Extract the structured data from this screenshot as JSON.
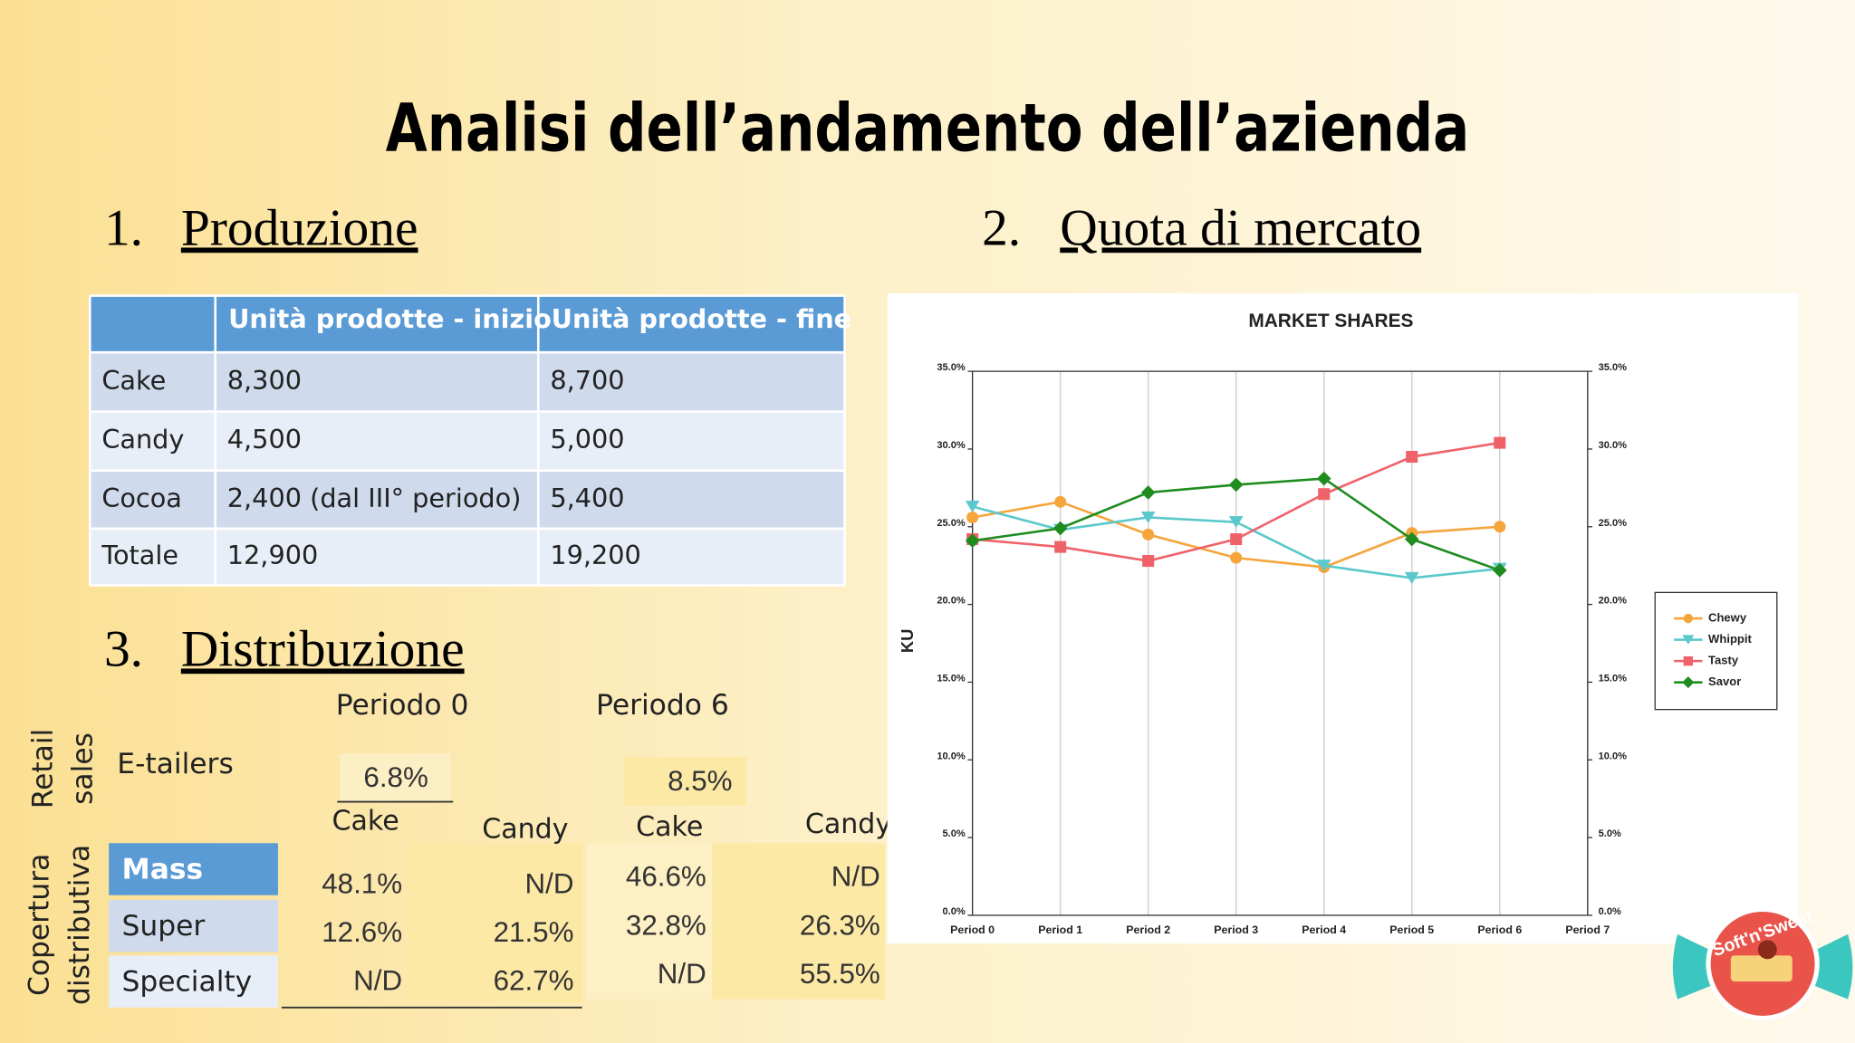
{
  "title": "Analisi dell’andamento dell’azienda",
  "sections": [
    {
      "number": "1.",
      "title": "Produzione"
    },
    {
      "number": "2.",
      "title": "Quota di mercato"
    },
    {
      "number": "3.",
      "title": "Distribuzione"
    }
  ],
  "production_table": {
    "header": [
      "Unità prodotte - inizio",
      "Unità prodotte  - fine"
    ],
    "rows": [
      [
        "Cake",
        "8,300",
        "8,700"
      ],
      [
        "Candy",
        "4,500",
        "5,000"
      ],
      [
        "Cocoa",
        "2,400 (dal III° periodo)",
        "5,400"
      ],
      [
        "Totale",
        "12,900",
        "19,200"
      ]
    ]
  },
  "distribution": {
    "periods": [
      "Periodo 0",
      "Periodo 6"
    ],
    "retail_label": [
      "Retail",
      "sales"
    ],
    "coverage_label": [
      "Copertura",
      "distributiva"
    ],
    "etailers": {
      "label": "E-tailers",
      "values": [
        "6.8%",
        "8.5%"
      ]
    },
    "columns": [
      "Cake",
      "Candy",
      "Cake",
      "Candy"
    ],
    "rows": [
      {
        "label": "Mass",
        "values": [
          "48.1%",
          "N/D",
          "46.6%",
          "N/D"
        ]
      },
      {
        "label": "Super",
        "values": [
          "12.6%",
          "21.5%",
          "32.8%",
          "26.3%"
        ]
      },
      {
        "label": "Specialty",
        "values": [
          "N/D",
          "62.7%",
          "N/D",
          "55.5%"
        ]
      }
    ]
  },
  "logo": "Soft'n'Sweet",
  "chart_data": {
    "type": "line",
    "title": "MARKET SHARES",
    "ylabel": "KU",
    "categories": [
      "Period 0",
      "Period 1",
      "Period 2",
      "Period 3",
      "Period 4",
      "Period 5",
      "Period 6",
      "Period 7"
    ],
    "series": [
      {
        "name": "Chewy",
        "color": "#f4a53c",
        "marker": "circle",
        "values": [
          25.6,
          26.6,
          24.5,
          23.0,
          22.4,
          24.6,
          25.0,
          null
        ]
      },
      {
        "name": "Whippit",
        "color": "#5bc8cc",
        "marker": "triangle-down",
        "values": [
          26.3,
          24.8,
          25.6,
          25.3,
          22.5,
          21.7,
          22.3,
          null
        ]
      },
      {
        "name": "Tasty",
        "color": "#f0626a",
        "marker": "square",
        "values": [
          24.2,
          23.7,
          22.8,
          24.2,
          27.1,
          29.5,
          30.4,
          null
        ]
      },
      {
        "name": "Savor",
        "color": "#1f8c1f",
        "marker": "diamond",
        "values": [
          24.1,
          24.9,
          27.2,
          27.7,
          28.1,
          24.2,
          22.2,
          null
        ]
      }
    ],
    "ylim": [
      0,
      35
    ],
    "yticks": [
      {
        "value": 0,
        "label": "0.0%"
      },
      {
        "value": 5,
        "label": "5.0%"
      },
      {
        "value": 10,
        "label": "10.0%"
      },
      {
        "value": 15,
        "label": "15.0%"
      },
      {
        "value": 20,
        "label": "20.0%"
      },
      {
        "value": 25,
        "label": "25.0%"
      },
      {
        "value": 30,
        "label": "30.0%"
      },
      {
        "value": 35,
        "label": "35.0%"
      }
    ],
    "y2lim": [
      0,
      35
    ],
    "y2ticks": [
      {
        "value": 0,
        "label": "0.0%"
      },
      {
        "value": 5,
        "label": "5.0%"
      },
      {
        "value": 10,
        "label": "10.0%"
      },
      {
        "value": 15,
        "label": "15.0%"
      },
      {
        "value": 20,
        "label": "20.0%"
      },
      {
        "value": 25,
        "label": "25.0%"
      },
      {
        "value": 30,
        "label": "30.0%"
      },
      {
        "value": 35,
        "label": "35.0%"
      }
    ],
    "grid": "x",
    "legend": "right"
  }
}
